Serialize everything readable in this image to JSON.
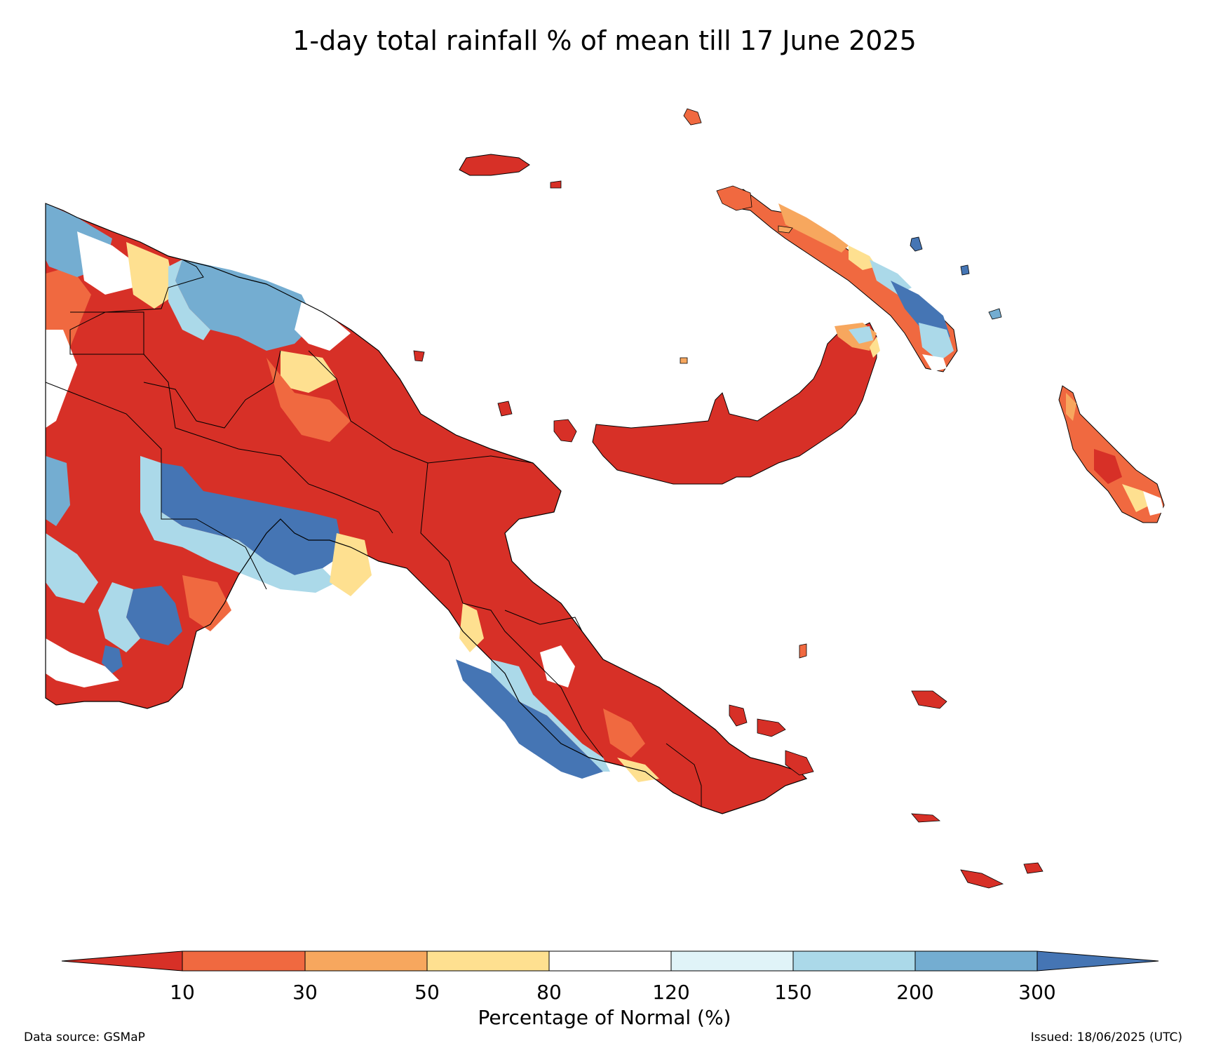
{
  "title": "1-day total rainfall % of mean till 17 June 2025",
  "colorbar": {
    "title": "Percentage of Normal (%)",
    "ticks": [
      "10",
      "30",
      "50",
      "80",
      "120",
      "150",
      "200",
      "300"
    ],
    "bins": [
      {
        "range": "<10",
        "color": "#d73027"
      },
      {
        "range": "10-30",
        "color": "#f06940"
      },
      {
        "range": "30-50",
        "color": "#f7a75e"
      },
      {
        "range": "50-80",
        "color": "#fee090"
      },
      {
        "range": "80-120",
        "color": "#ffffff"
      },
      {
        "range": "120-150",
        "color": "#e0f3f8"
      },
      {
        "range": "150-200",
        "color": "#abd9e9"
      },
      {
        "range": "200-300",
        "color": "#74add1"
      },
      {
        "range": ">300",
        "color": "#4575b4"
      }
    ]
  },
  "footer": {
    "source": "Data source: GSMaP",
    "issued": "Issued: 18/06/2025 (UTC)"
  }
}
